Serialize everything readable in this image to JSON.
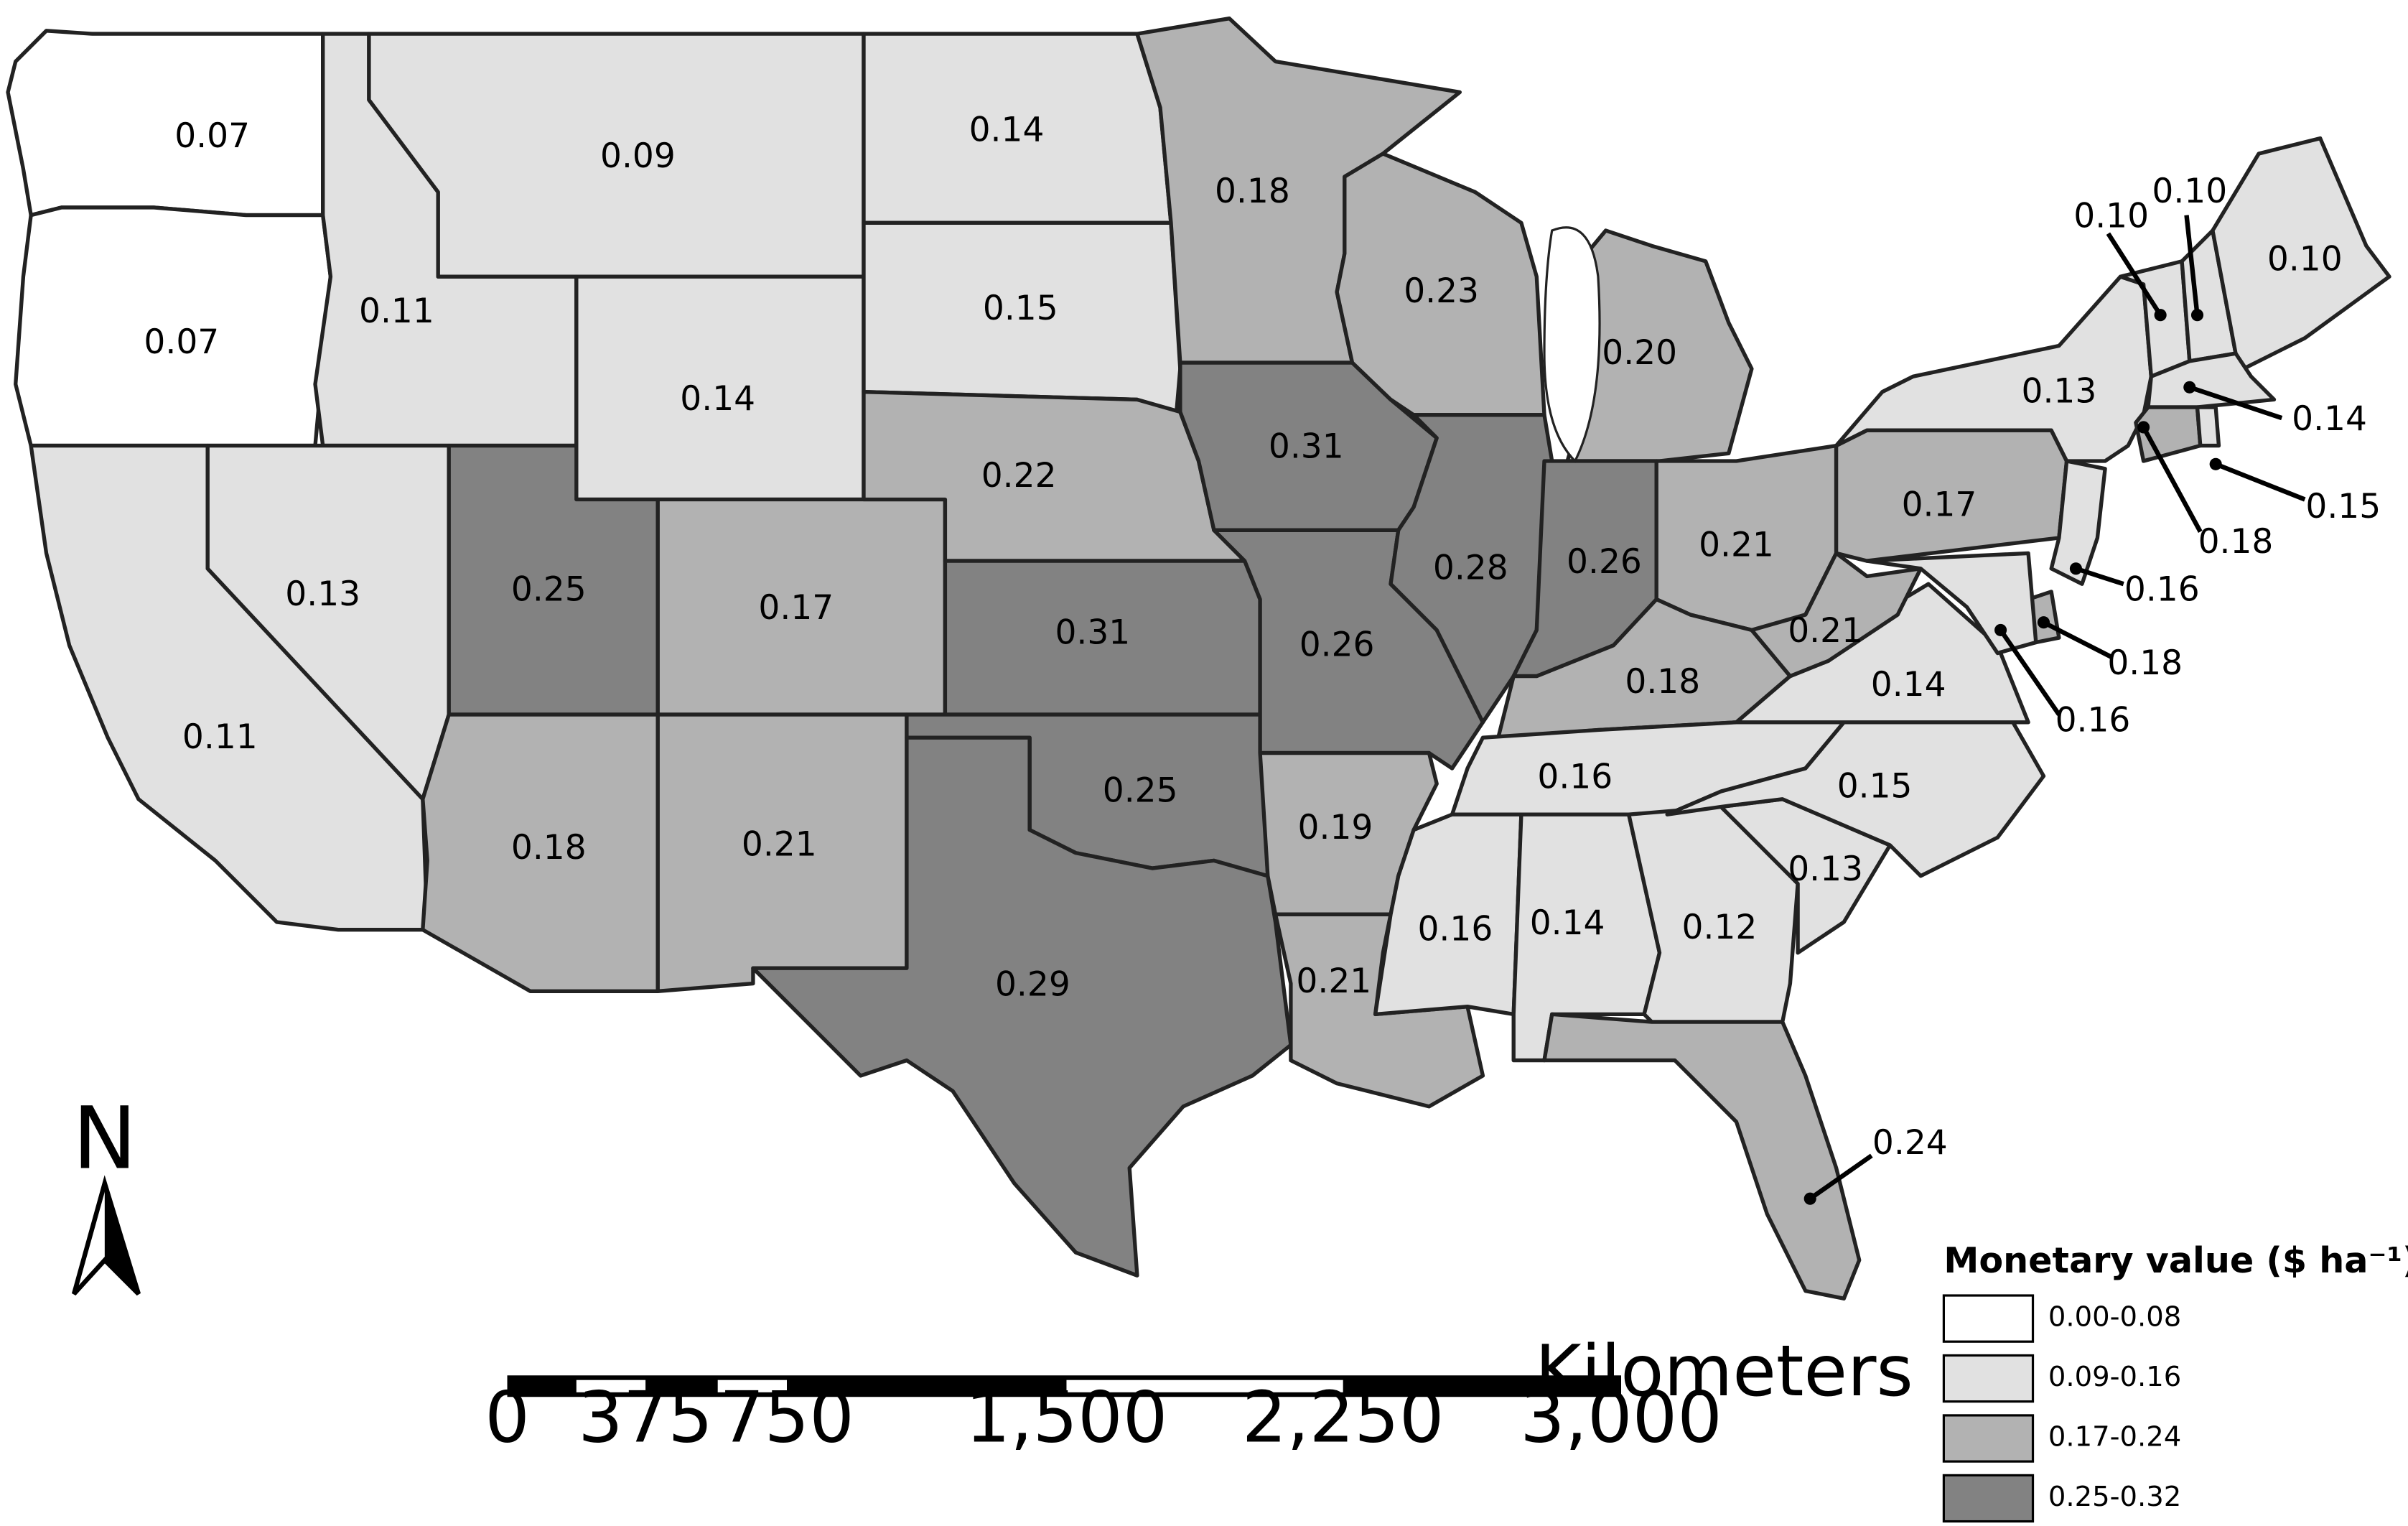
{
  "map": {
    "legend": {
      "title": "Monetary value ($ ha⁻¹)",
      "classes": [
        {
          "label": "0.00-0.08",
          "color": "#ffffff"
        },
        {
          "label": "0.09-0.16",
          "color": "#e1e1e1"
        },
        {
          "label": "0.17-0.24",
          "color": "#b2b2b2"
        },
        {
          "label": "0.25-0.32",
          "color": "#828282"
        }
      ]
    },
    "north_label": "N",
    "scale": {
      "unit": "Kilometers",
      "ticks": [
        "0",
        "375",
        "750",
        "1,500",
        "2,250",
        "3,000"
      ]
    },
    "states": [
      {
        "id": "WA",
        "value": "0.07"
      },
      {
        "id": "OR",
        "value": "0.07"
      },
      {
        "id": "CA",
        "value": "0.11"
      },
      {
        "id": "ID",
        "value": "0.11"
      },
      {
        "id": "NV",
        "value": "0.13"
      },
      {
        "id": "MT",
        "value": "0.09"
      },
      {
        "id": "WY",
        "value": "0.14"
      },
      {
        "id": "UT",
        "value": "0.25"
      },
      {
        "id": "AZ",
        "value": "0.18"
      },
      {
        "id": "CO",
        "value": "0.17"
      },
      {
        "id": "NM",
        "value": "0.21"
      },
      {
        "id": "ND",
        "value": "0.14"
      },
      {
        "id": "SD",
        "value": "0.15"
      },
      {
        "id": "NE",
        "value": "0.22"
      },
      {
        "id": "KS",
        "value": "0.31"
      },
      {
        "id": "OK",
        "value": "0.25"
      },
      {
        "id": "TX",
        "value": "0.29"
      },
      {
        "id": "MN",
        "value": "0.18"
      },
      {
        "id": "IA",
        "value": "0.31"
      },
      {
        "id": "MO",
        "value": "0.26"
      },
      {
        "id": "AR",
        "value": "0.19"
      },
      {
        "id": "LA",
        "value": "0.21"
      },
      {
        "id": "WI",
        "value": "0.23"
      },
      {
        "id": "IL",
        "value": "0.28"
      },
      {
        "id": "MI",
        "value": "0.20"
      },
      {
        "id": "IN",
        "value": "0.26"
      },
      {
        "id": "OH",
        "value": "0.21"
      },
      {
        "id": "KY",
        "value": "0.18"
      },
      {
        "id": "TN",
        "value": "0.16"
      },
      {
        "id": "MS",
        "value": "0.16"
      },
      {
        "id": "AL",
        "value": "0.14"
      },
      {
        "id": "GA",
        "value": "0.12"
      },
      {
        "id": "FL",
        "value": "0.24"
      },
      {
        "id": "SC",
        "value": "0.13"
      },
      {
        "id": "NC",
        "value": "0.15"
      },
      {
        "id": "VA",
        "value": "0.14"
      },
      {
        "id": "WV",
        "value": "0.21"
      },
      {
        "id": "PA",
        "value": "0.17"
      },
      {
        "id": "NY",
        "value": "0.13"
      },
      {
        "id": "VT",
        "value": "0.10"
      },
      {
        "id": "NH",
        "value": "0.10"
      },
      {
        "id": "ME",
        "value": "0.10"
      },
      {
        "id": "MA",
        "value": "0.14"
      },
      {
        "id": "RI",
        "value": "0.15"
      },
      {
        "id": "CT",
        "value": "0.18"
      },
      {
        "id": "NJ",
        "value": "0.16"
      },
      {
        "id": "DE",
        "value": "0.18"
      },
      {
        "id": "MD",
        "value": "0.16"
      }
    ]
  }
}
